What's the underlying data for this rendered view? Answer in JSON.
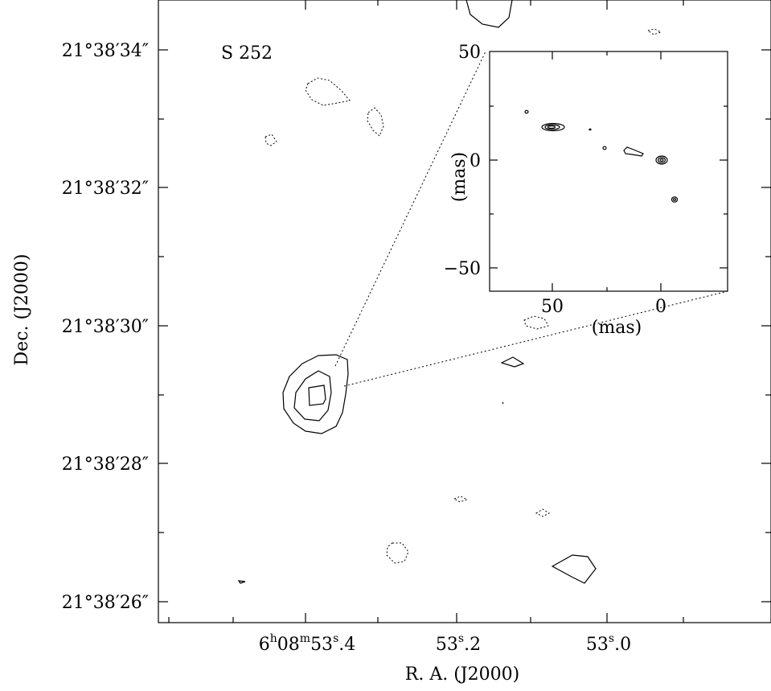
{
  "chart_data": [
    {
      "type": "contour",
      "source_label": "S 252",
      "xlabel": "R. A. (J2000)",
      "ylabel": "Dec. (J2000)",
      "x_ticks": [
        {
          "h": "6",
          "m": "08",
          "s": "53",
          "frac": ".4"
        },
        {
          "h": "",
          "m": "",
          "s": "53",
          "frac": ".2"
        },
        {
          "h": "",
          "m": "",
          "s": "53",
          "frac": ".0"
        }
      ],
      "y_ticks": [
        "21°38′34″",
        "21°38′32″",
        "21°38′30″",
        "21°38′28″",
        "21°38′26″"
      ],
      "solid_contours": "positive",
      "dotted_contours": "negative"
    },
    {
      "type": "contour",
      "inset": true,
      "xlabel": "(mas)",
      "ylabel": "(mas)",
      "x_ticks": [
        "50",
        "0"
      ],
      "y_ticks": [
        "50",
        "0",
        "−50"
      ],
      "xlim": [
        75,
        -30
      ],
      "ylim": [
        -60,
        50
      ]
    }
  ]
}
